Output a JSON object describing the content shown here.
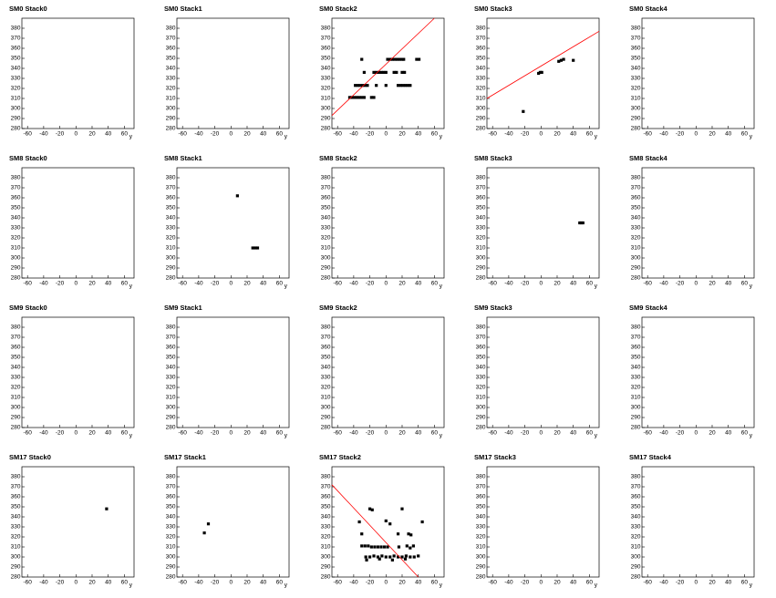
{
  "chart_data": [
    {
      "type": "scatter",
      "title": "SM0 Stack0",
      "xlabel": "y",
      "color": "#000000",
      "x": [],
      "y": [],
      "xlim": [
        -67,
        72
      ],
      "ylim": [
        280,
        390
      ],
      "xticks": [
        -60,
        -40,
        -20,
        0,
        20,
        40,
        60
      ],
      "yticks": [
        280,
        290,
        300,
        310,
        320,
        330,
        340,
        350,
        360,
        370,
        380
      ]
    },
    {
      "type": "scatter",
      "title": "SM0 Stack1",
      "xlabel": "y",
      "color": "#000000",
      "x": [],
      "y": [],
      "xlim": [
        -67,
        72
      ],
      "ylim": [
        280,
        390
      ],
      "xticks": [
        -60,
        -40,
        -20,
        0,
        20,
        40,
        60
      ],
      "yticks": [
        280,
        290,
        300,
        310,
        320,
        330,
        340,
        350,
        360,
        370,
        380
      ]
    },
    {
      "type": "scatter",
      "title": "SM0 Stack2",
      "xlabel": "y",
      "color": "#000000",
      "x": [
        -30,
        2,
        5,
        8,
        11,
        14,
        17,
        20,
        22,
        38,
        41,
        -27,
        -15,
        -12,
        -9,
        -6,
        -3,
        0,
        10,
        13,
        20,
        23,
        -38,
        -35,
        -32,
        -29,
        -26,
        -23,
        -12,
        0,
        15,
        18,
        21,
        24,
        27,
        30,
        -45,
        -42,
        -39,
        -36,
        -33,
        -30,
        -27,
        -18,
        -15
      ],
      "y": [
        349,
        349,
        349,
        349,
        349,
        349,
        349,
        349,
        349,
        349,
        349,
        336,
        336,
        336,
        336,
        336,
        336,
        336,
        336,
        336,
        336,
        336,
        323,
        323,
        323,
        323,
        323,
        323,
        323,
        323,
        323,
        323,
        323,
        323,
        323,
        323,
        311,
        311,
        311,
        311,
        311,
        311,
        311,
        311,
        311
      ],
      "fit": {
        "color": "#ff0000",
        "x": [
          -67,
          60
        ],
        "y": [
          293,
          390
        ]
      },
      "xlim": [
        -67,
        72
      ],
      "ylim": [
        280,
        390
      ],
      "xticks": [
        -60,
        -40,
        -20,
        0,
        20,
        40,
        60
      ],
      "yticks": [
        280,
        290,
        300,
        310,
        320,
        330,
        340,
        350,
        360,
        370,
        380
      ]
    },
    {
      "type": "scatter",
      "title": "SM0 Stack3",
      "xlabel": "y",
      "color": "#000000",
      "x": [
        -22,
        -3,
        -1,
        1,
        22,
        25,
        28,
        40
      ],
      "y": [
        297,
        335,
        336,
        336,
        347,
        348,
        349,
        348
      ],
      "fit": {
        "color": "#ff0000",
        "x": [
          -67,
          72
        ],
        "y": [
          310,
          377
        ]
      },
      "xlim": [
        -67,
        72
      ],
      "ylim": [
        280,
        390
      ],
      "xticks": [
        -60,
        -40,
        -20,
        0,
        20,
        40,
        60
      ],
      "yticks": [
        280,
        290,
        300,
        310,
        320,
        330,
        340,
        350,
        360,
        370,
        380
      ]
    },
    {
      "type": "scatter",
      "title": "SM0 Stack4",
      "xlabel": "y",
      "color": "#000000",
      "x": [],
      "y": [],
      "xlim": [
        -67,
        72
      ],
      "ylim": [
        280,
        390
      ],
      "xticks": [
        -60,
        -40,
        -20,
        0,
        20,
        40,
        60
      ],
      "yticks": [
        280,
        290,
        300,
        310,
        320,
        330,
        340,
        350,
        360,
        370,
        380
      ]
    },
    {
      "type": "scatter",
      "title": "SM8 Stack0",
      "xlabel": "y",
      "color": "#000000",
      "x": [],
      "y": [],
      "xlim": [
        -67,
        72
      ],
      "ylim": [
        280,
        390
      ],
      "xticks": [
        -60,
        -40,
        -20,
        0,
        20,
        40,
        60
      ],
      "yticks": [
        280,
        290,
        300,
        310,
        320,
        330,
        340,
        350,
        360,
        370,
        380
      ]
    },
    {
      "type": "scatter",
      "title": "SM8 Stack1",
      "xlabel": "y",
      "color": "#000000",
      "x": [
        8,
        27,
        30,
        33
      ],
      "y": [
        362,
        310,
        310,
        310
      ],
      "xlim": [
        -67,
        72
      ],
      "ylim": [
        280,
        390
      ],
      "xticks": [
        -60,
        -40,
        -20,
        0,
        20,
        40,
        60
      ],
      "yticks": [
        280,
        290,
        300,
        310,
        320,
        330,
        340,
        350,
        360,
        370,
        380
      ]
    },
    {
      "type": "scatter",
      "title": "SM8 Stack2",
      "xlabel": "y",
      "color": "#000000",
      "x": [],
      "y": [],
      "xlim": [
        -67,
        72
      ],
      "ylim": [
        280,
        390
      ],
      "xticks": [
        -60,
        -40,
        -20,
        0,
        20,
        40,
        60
      ],
      "yticks": [
        280,
        290,
        300,
        310,
        320,
        330,
        340,
        350,
        360,
        370,
        380
      ]
    },
    {
      "type": "scatter",
      "title": "SM8 Stack3",
      "xlabel": "y",
      "color": "#000000",
      "x": [
        48,
        50,
        52
      ],
      "y": [
        335,
        335,
        335
      ],
      "xlim": [
        -67,
        72
      ],
      "ylim": [
        280,
        390
      ],
      "xticks": [
        -60,
        -40,
        -20,
        0,
        20,
        40,
        60
      ],
      "yticks": [
        280,
        290,
        300,
        310,
        320,
        330,
        340,
        350,
        360,
        370,
        380
      ]
    },
    {
      "type": "scatter",
      "title": "SM8 Stack4",
      "xlabel": "y",
      "color": "#000000",
      "x": [],
      "y": [],
      "xlim": [
        -67,
        72
      ],
      "ylim": [
        280,
        390
      ],
      "xticks": [
        -60,
        -40,
        -20,
        0,
        20,
        40,
        60
      ],
      "yticks": [
        280,
        290,
        300,
        310,
        320,
        330,
        340,
        350,
        360,
        370,
        380
      ]
    },
    {
      "type": "scatter",
      "title": "SM9 Stack0",
      "xlabel": "y",
      "color": "#000000",
      "x": [],
      "y": [],
      "xlim": [
        -67,
        72
      ],
      "ylim": [
        280,
        390
      ],
      "xticks": [
        -60,
        -40,
        -20,
        0,
        20,
        40,
        60
      ],
      "yticks": [
        280,
        290,
        300,
        310,
        320,
        330,
        340,
        350,
        360,
        370,
        380
      ]
    },
    {
      "type": "scatter",
      "title": "SM9 Stack1",
      "xlabel": "y",
      "color": "#000000",
      "x": [],
      "y": [],
      "xlim": [
        -67,
        72
      ],
      "ylim": [
        280,
        390
      ],
      "xticks": [
        -60,
        -40,
        -20,
        0,
        20,
        40,
        60
      ],
      "yticks": [
        280,
        290,
        300,
        310,
        320,
        330,
        340,
        350,
        360,
        370,
        380
      ]
    },
    {
      "type": "scatter",
      "title": "SM9 Stack2",
      "xlabel": "y",
      "color": "#000000",
      "x": [],
      "y": [],
      "xlim": [
        -67,
        72
      ],
      "ylim": [
        280,
        390
      ],
      "xticks": [
        -60,
        -40,
        -20,
        0,
        20,
        40,
        60
      ],
      "yticks": [
        280,
        290,
        300,
        310,
        320,
        330,
        340,
        350,
        360,
        370,
        380
      ]
    },
    {
      "type": "scatter",
      "title": "SM9 Stack3",
      "xlabel": "y",
      "color": "#000000",
      "x": [],
      "y": [],
      "xlim": [
        -67,
        72
      ],
      "ylim": [
        280,
        390
      ],
      "xticks": [
        -60,
        -40,
        -20,
        0,
        20,
        40,
        60
      ],
      "yticks": [
        280,
        290,
        300,
        310,
        320,
        330,
        340,
        350,
        360,
        370,
        380
      ]
    },
    {
      "type": "scatter",
      "title": "SM9 Stack4",
      "xlabel": "y",
      "color": "#000000",
      "x": [],
      "y": [],
      "xlim": [
        -67,
        72
      ],
      "ylim": [
        280,
        390
      ],
      "xticks": [
        -60,
        -40,
        -20,
        0,
        20,
        40,
        60
      ],
      "yticks": [
        280,
        290,
        300,
        310,
        320,
        330,
        340,
        350,
        360,
        370,
        380
      ]
    },
    {
      "type": "scatter",
      "title": "SM17 Stack0",
      "xlabel": "y",
      "color": "#000000",
      "x": [
        38
      ],
      "y": [
        348
      ],
      "xlim": [
        -67,
        72
      ],
      "ylim": [
        280,
        390
      ],
      "xticks": [
        -60,
        -40,
        -20,
        0,
        20,
        40,
        60
      ],
      "yticks": [
        280,
        290,
        300,
        310,
        320,
        330,
        340,
        350,
        360,
        370,
        380
      ]
    },
    {
      "type": "scatter",
      "title": "SM17 Stack1",
      "xlabel": "y",
      "color": "#000000",
      "x": [
        -33,
        -28
      ],
      "y": [
        324,
        333
      ],
      "xlim": [
        -67,
        72
      ],
      "ylim": [
        280,
        390
      ],
      "xticks": [
        -60,
        -40,
        -20,
        0,
        20,
        40,
        60
      ],
      "yticks": [
        280,
        290,
        300,
        310,
        320,
        330,
        340,
        350,
        360,
        370,
        380
      ]
    },
    {
      "type": "scatter",
      "title": "SM17 Stack2",
      "xlabel": "y",
      "color": "#000000",
      "x": [
        -33,
        -30,
        -20,
        -17,
        0,
        5,
        20,
        15,
        28,
        31,
        45,
        -30,
        -26,
        -22,
        -18,
        -14,
        -10,
        -6,
        -2,
        2,
        16,
        26,
        30,
        34,
        -25,
        -20,
        -15,
        -10,
        -5,
        0,
        5,
        10,
        15,
        20,
        25,
        30,
        35,
        40,
        -24,
        -8,
        8,
        24
      ],
      "y": [
        335,
        323,
        348,
        347,
        336,
        333,
        348,
        323,
        323,
        322,
        335,
        311,
        311,
        311,
        310,
        310,
        310,
        310,
        310,
        310,
        310,
        311,
        309,
        311,
        300,
        300,
        301,
        300,
        301,
        300,
        300,
        301,
        300,
        300,
        301,
        300,
        300,
        301,
        297,
        298,
        297,
        298
      ],
      "fit": {
        "color": "#ff0000",
        "x": [
          -67,
          40
        ],
        "y": [
          372,
          280
        ]
      },
      "xlim": [
        -67,
        72
      ],
      "ylim": [
        280,
        390
      ],
      "xticks": [
        -60,
        -40,
        -20,
        0,
        20,
        40,
        60
      ],
      "yticks": [
        280,
        290,
        300,
        310,
        320,
        330,
        340,
        350,
        360,
        370,
        380
      ]
    },
    {
      "type": "scatter",
      "title": "SM17 Stack3",
      "xlabel": "y",
      "color": "#000000",
      "x": [],
      "y": [],
      "xlim": [
        -67,
        72
      ],
      "ylim": [
        280,
        390
      ],
      "xticks": [
        -60,
        -40,
        -20,
        0,
        20,
        40,
        60
      ],
      "yticks": [
        280,
        290,
        300,
        310,
        320,
        330,
        340,
        350,
        360,
        370,
        380
      ]
    },
    {
      "type": "scatter",
      "title": "SM17 Stack4",
      "xlabel": "y",
      "color": "#000000",
      "x": [],
      "y": [],
      "xlim": [
        -67,
        72
      ],
      "ylim": [
        280,
        390
      ],
      "xticks": [
        -60,
        -40,
        -20,
        0,
        20,
        40,
        60
      ],
      "yticks": [
        280,
        290,
        300,
        310,
        320,
        330,
        340,
        350,
        360,
        370,
        380
      ]
    }
  ]
}
